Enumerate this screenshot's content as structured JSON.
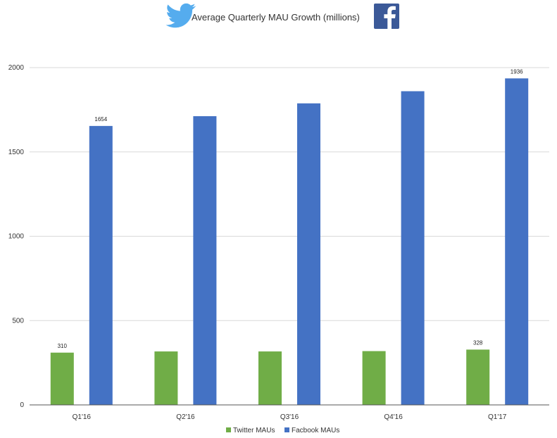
{
  "chart_data": {
    "type": "bar",
    "title": "Average Quarterly  MAU Growth  (millions)",
    "categories": [
      "Q1'16",
      "Q2'16",
      "Q3'16",
      "Q4'16",
      "Q1'17"
    ],
    "series": [
      {
        "name": "Twitter MAUs",
        "color": "#70ad47",
        "values": [
          310,
          317,
          317,
          319,
          328
        ]
      },
      {
        "name": "Facbook MAUs",
        "color": "#4472c4",
        "values": [
          1654,
          1712,
          1788,
          1860,
          1936
        ]
      }
    ],
    "data_labels": [
      {
        "series": 0,
        "index": 0,
        "text": "310"
      },
      {
        "series": 1,
        "index": 0,
        "text": "1654"
      },
      {
        "series": 0,
        "index": 4,
        "text": "328"
      },
      {
        "series": 1,
        "index": 4,
        "text": "1936"
      }
    ],
    "ylim": [
      0,
      2000
    ],
    "yticks": [
      "0",
      "500",
      "1000",
      "1500",
      "2000"
    ],
    "ytick_values": [
      0,
      500,
      1000,
      1500,
      2000
    ],
    "grid": true,
    "legend_position": "bottom",
    "icons": {
      "left": "twitter-bird-icon",
      "right": "facebook-logo-icon"
    }
  }
}
